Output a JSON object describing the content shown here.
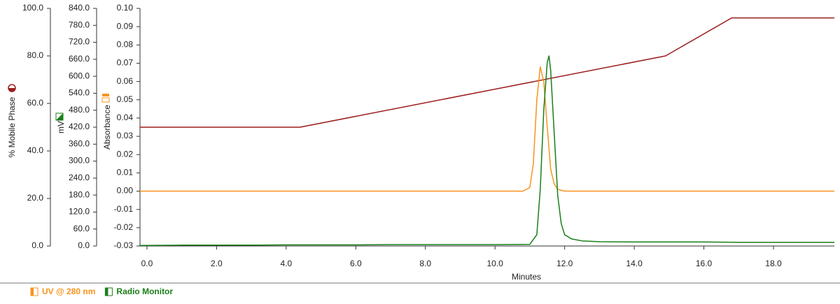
{
  "chart_data": {
    "type": "line",
    "xlabel": "Minutes",
    "ylabel": "Absorbance",
    "y2label": "mV",
    "y3label": "% Mobile Phase",
    "xlim": [
      -0.2,
      19.75
    ],
    "xticks": [
      {
        "value": 0,
        "label": "0.0"
      },
      {
        "value": 2,
        "label": "2.0"
      },
      {
        "value": 4,
        "label": "4.0"
      },
      {
        "value": 6,
        "label": "6.0"
      },
      {
        "value": 8,
        "label": "8.0"
      },
      {
        "value": 10,
        "label": "10.0"
      },
      {
        "value": 12,
        "label": "12.0"
      },
      {
        "value": 14,
        "label": "14.0"
      },
      {
        "value": 16,
        "label": "16.0"
      },
      {
        "value": 18,
        "label": "18.0"
      }
    ],
    "ylim": [
      -0.03,
      0.1
    ],
    "yticks": [
      -0.03,
      -0.02,
      -0.01,
      {
        "value": 0,
        "label": "0.00"
      },
      0.01,
      0.02,
      0.03,
      0.04,
      0.05,
      0.06,
      0.07,
      0.08,
      0.09,
      {
        "value": 0.1,
        "label": "0.10"
      }
    ],
    "y2lim": [
      0,
      840
    ],
    "y2ticks": [
      {
        "value": 0,
        "label": "0.0"
      },
      {
        "value": 60,
        "label": "60.0"
      },
      {
        "value": 120,
        "label": "120.0"
      },
      {
        "value": 180,
        "label": "180.0"
      },
      {
        "value": 240,
        "label": "240.0"
      },
      {
        "value": 300,
        "label": "300.0"
      },
      {
        "value": 360,
        "label": "360.0"
      },
      {
        "value": 420,
        "label": "420.0"
      },
      {
        "value": 480,
        "label": "480.0"
      },
      {
        "value": 540,
        "label": "540.0"
      },
      {
        "value": 600,
        "label": "600.0"
      },
      {
        "value": 660,
        "label": "660.0"
      },
      {
        "value": 720,
        "label": "720.0"
      },
      {
        "value": 780,
        "label": "780.0"
      },
      {
        "value": 840,
        "label": "840.0"
      }
    ],
    "y3lim": [
      0,
      100
    ],
    "y3ticks": [
      {
        "value": 0,
        "label": "0.0"
      },
      {
        "value": 20,
        "label": "20.0"
      },
      {
        "value": 40,
        "label": "40.0"
      },
      {
        "value": 60,
        "label": "60.0"
      },
      {
        "value": 80,
        "label": "80.0"
      },
      {
        "value": 100,
        "label": "100.0"
      }
    ],
    "series": [
      {
        "axis": "y3",
        "color": "#9b1c1c",
        "x": [
          -0.2,
          4.4,
          14.9,
          16.8,
          19.75
        ],
        "values": [
          50,
          50,
          80,
          96,
          96
        ]
      },
      {
        "name": "UV @ 280 nm",
        "axis": "y",
        "color": "#f7941d",
        "x": [
          -0.2,
          1,
          2,
          3,
          4,
          5,
          6,
          7,
          8,
          9,
          10,
          10.8,
          11.0,
          11.1,
          11.2,
          11.3,
          11.4,
          11.5,
          11.6,
          11.7,
          11.8,
          12,
          13,
          14,
          15,
          16,
          17,
          18,
          19,
          19.75
        ],
        "values": [
          0.0,
          0.0,
          0.0,
          0.0,
          0.0,
          0.0,
          0.0,
          0.0,
          0.0,
          0.0,
          0.0,
          0.0,
          0.002,
          0.015,
          0.05,
          0.068,
          0.06,
          0.035,
          0.012,
          0.004,
          0.001,
          0.0,
          0.0,
          0.0,
          0.0,
          0.0,
          0.0,
          0.0,
          0.0,
          0.0
        ]
      },
      {
        "name": "Radio Monitor",
        "axis": "y2",
        "color": "#1a7f1a",
        "x": [
          -0.2,
          1,
          2,
          3,
          4,
          5,
          6,
          7,
          8,
          9,
          10,
          11.0,
          11.2,
          11.3,
          11.4,
          11.5,
          11.55,
          11.6,
          11.7,
          11.8,
          11.9,
          12.0,
          12.2,
          12.5,
          13,
          14,
          15,
          16,
          17,
          18,
          19,
          19.75
        ],
        "values": [
          2,
          3,
          3,
          3,
          4,
          4,
          4,
          5,
          5,
          5,
          5,
          6,
          40,
          200,
          480,
          650,
          672,
          620,
          400,
          180,
          80,
          40,
          25,
          18,
          15,
          14,
          14,
          14,
          13,
          13,
          13,
          13
        ]
      }
    ]
  }
}
